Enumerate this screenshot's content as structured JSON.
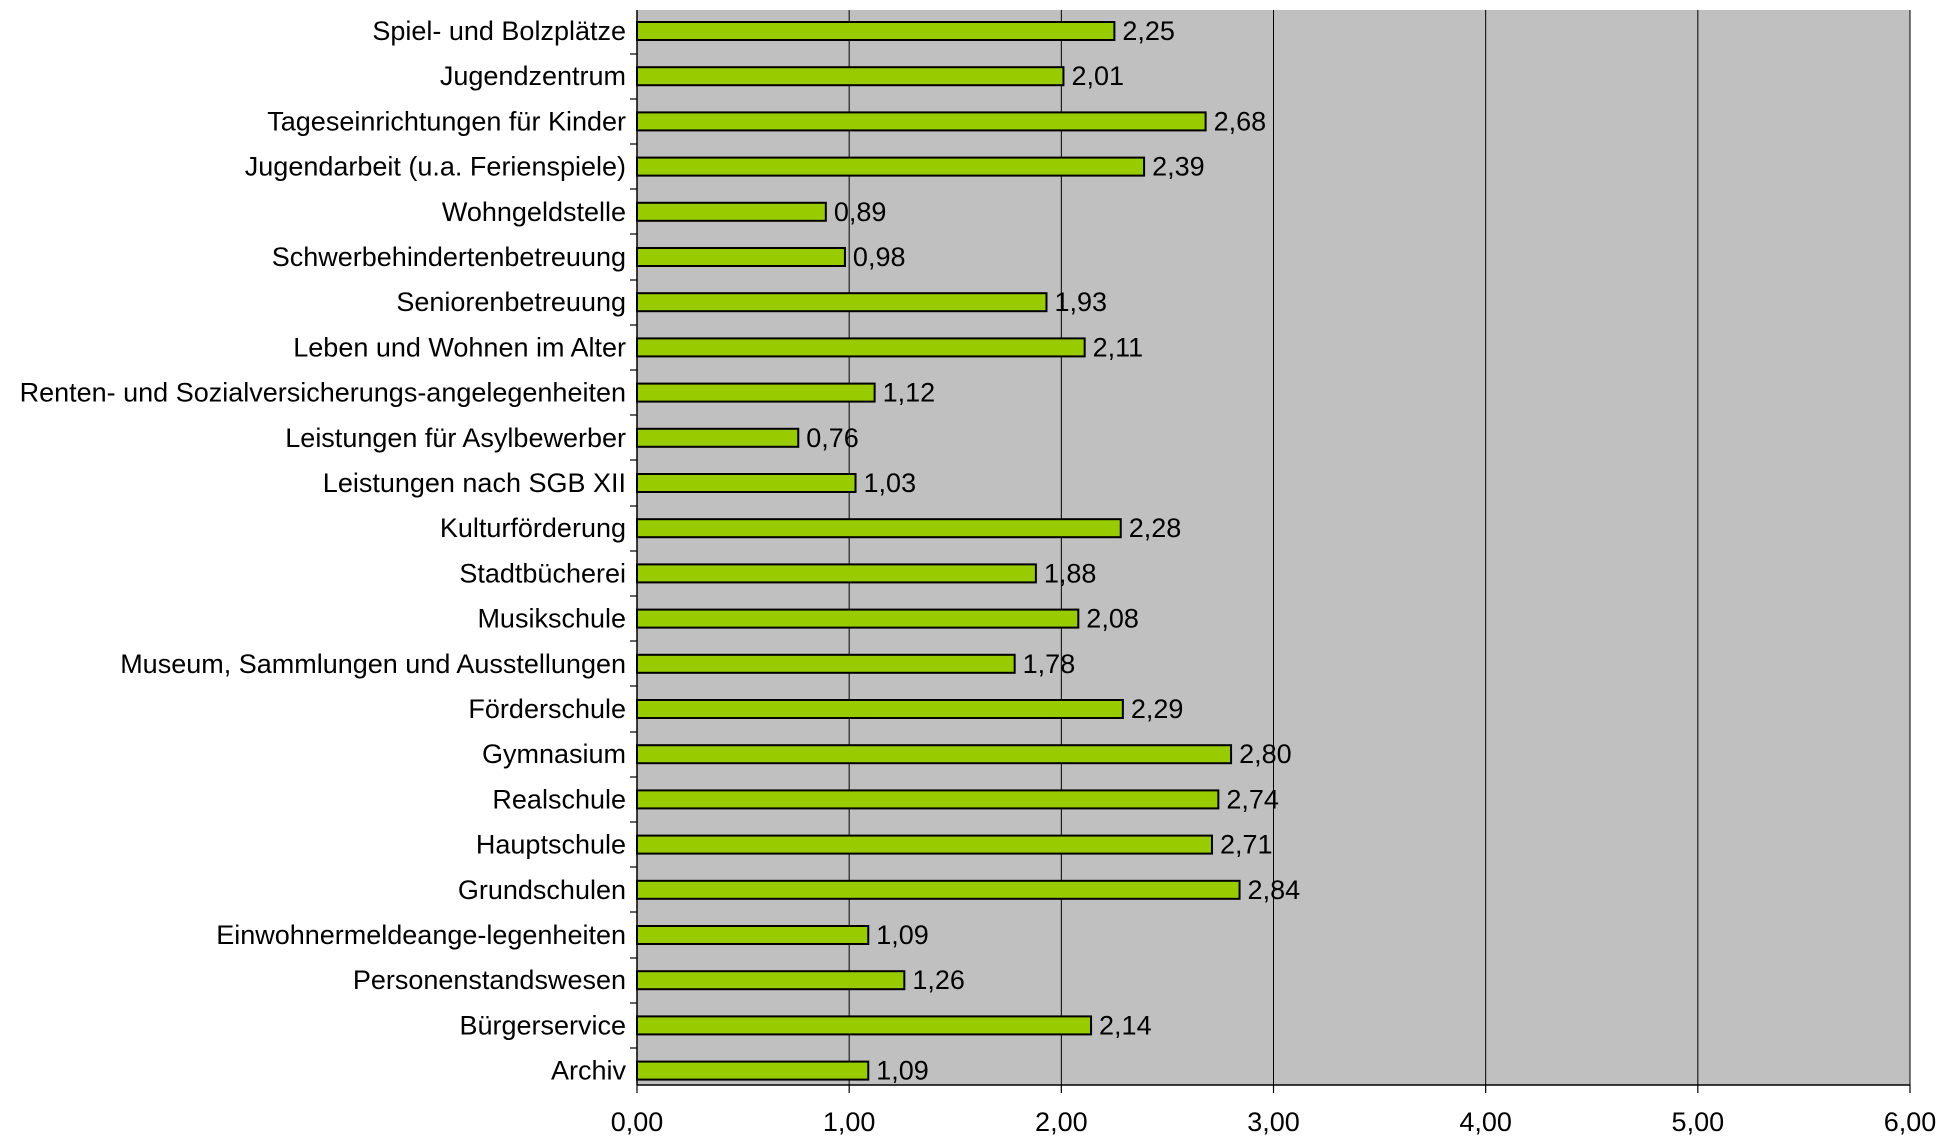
{
  "chart_data": {
    "type": "bar",
    "orientation": "horizontal",
    "title": "",
    "xlabel": "",
    "ylabel": "",
    "categories": [
      "Spiel- und Bolzplätze",
      "Jugendzentrum",
      "Tageseinrichtungen für Kinder",
      "Jugendarbeit (u.a. Ferienspiele)",
      "Wohngeldstelle",
      "Schwerbehindertenbetreuung",
      "Seniorenbetreuung",
      "Leben und Wohnen im Alter",
      "Renten- und Sozialversicherungs-angelegenheiten",
      "Leistungen für Asylbewerber",
      "Leistungen nach SGB XII",
      "Kulturförderung",
      "Stadtbücherei",
      "Musikschule",
      "Museum, Sammlungen und Ausstellungen",
      "Förderschule",
      "Gymnasium",
      "Realschule",
      "Hauptschule",
      "Grundschulen",
      "Einwohnermeldeange-legenheiten",
      "Personenstandswesen",
      "Bürgerservice",
      "Archiv"
    ],
    "values": [
      2.25,
      2.01,
      2.68,
      2.39,
      0.89,
      0.98,
      1.93,
      2.11,
      1.12,
      0.76,
      1.03,
      2.28,
      1.88,
      2.08,
      1.78,
      2.29,
      2.8,
      2.74,
      2.71,
      2.84,
      1.09,
      1.26,
      2.14,
      1.09
    ],
    "value_labels": [
      "2,25",
      "2,01",
      "2,68",
      "2,39",
      "0,89",
      "0,98",
      "1,93",
      "2,11",
      "1,12",
      "0,76",
      "1,03",
      "2,28",
      "1,88",
      "2,08",
      "1,78",
      "2,29",
      "2,80",
      "2,74",
      "2,71",
      "2,84",
      "1,09",
      "1,26",
      "2,14",
      "1,09"
    ],
    "xlim": [
      0,
      6
    ],
    "xticks": [
      0,
      1,
      2,
      3,
      4,
      5,
      6
    ],
    "xtick_labels": [
      "0,00",
      "1,00",
      "2,00",
      "3,00",
      "4,00",
      "5,00",
      "6,00"
    ],
    "grid": true,
    "legend": "none",
    "colors": {
      "bar_fill": "#99CC00",
      "bar_stroke": "#000000",
      "plot_background": "#C0C0C0",
      "gridline": "#000000"
    }
  }
}
